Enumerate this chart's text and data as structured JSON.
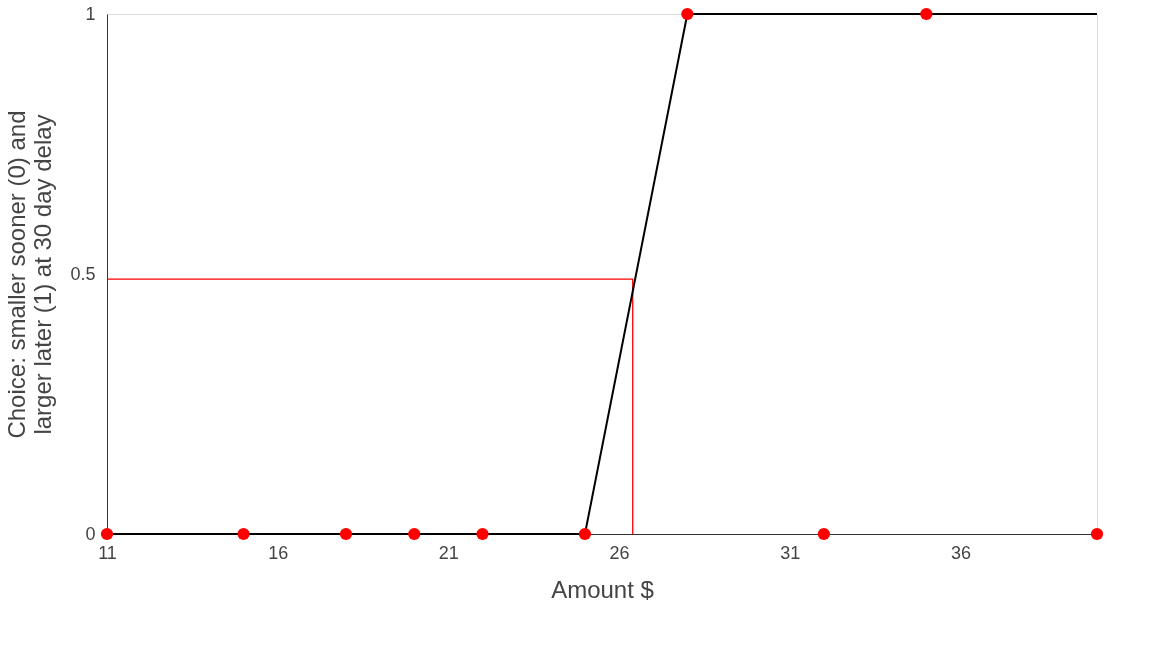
{
  "chart_data": {
    "type": "scatter",
    "xlabel": "Amount $",
    "ylabel": "Choice: smaller sooner (0) and larger later (1) at 30 day delay",
    "xlim": [
      11,
      40
    ],
    "xticks": [
      11,
      16,
      21,
      26,
      31,
      36
    ],
    "ylim": [
      0,
      1
    ],
    "yticks": [
      0,
      0.5,
      1
    ],
    "grid": false,
    "series": [
      {
        "type": "line",
        "color": "#ff0000",
        "x": [
          11,
          26.4,
          26.4
        ],
        "values": [
          0.49,
          0.49,
          0
        ],
        "marker": "none"
      },
      {
        "type": "line",
        "color": "#000000",
        "x": [
          11,
          25,
          28,
          40
        ],
        "values": [
          0,
          0,
          1,
          1
        ],
        "marker": "none"
      },
      {
        "color": "#ff0000",
        "x": [
          11,
          15,
          18,
          20,
          22,
          25,
          28,
          32,
          35,
          40
        ],
        "values": [
          0,
          0,
          0,
          0,
          0,
          0,
          1,
          0,
          1,
          0
        ],
        "marker": "circle"
      }
    ]
  }
}
